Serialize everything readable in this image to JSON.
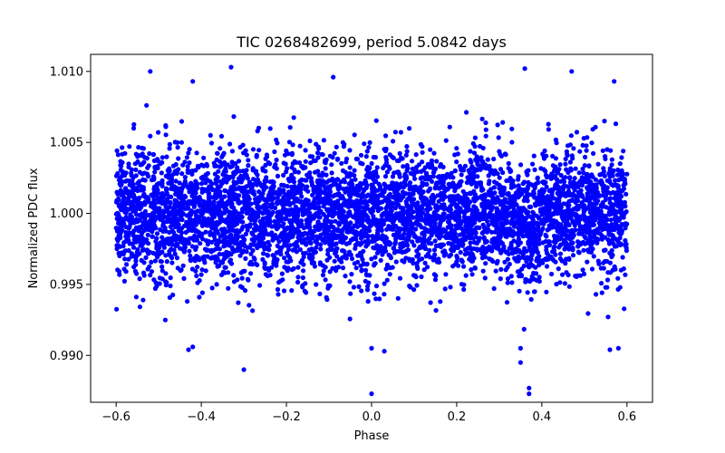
{
  "chart_data": {
    "type": "scatter",
    "title": "TIC 0268482699, period 5.0842 days",
    "xlabel": "Phase",
    "ylabel": "Normalized PDC flux",
    "xlim": [
      -0.66,
      0.66
    ],
    "ylim": [
      0.9867,
      1.0112
    ],
    "x_ticks": [
      -0.6,
      -0.4,
      -0.2,
      0.0,
      0.2,
      0.4,
      0.6
    ],
    "x_tick_labels": [
      "−0.6",
      "−0.4",
      "−0.2",
      "0.0",
      "0.2",
      "0.4",
      "0.6"
    ],
    "y_ticks": [
      0.99,
      0.995,
      1.0,
      1.005,
      1.01
    ],
    "y_tick_labels": [
      "0.990",
      "0.995",
      "1.000",
      "1.005",
      "1.010"
    ],
    "marker_color": "#0000ff",
    "grid": false,
    "phase_range": [
      -0.6,
      0.6
    ],
    "baseline_flux": 1.0,
    "typical_scatter": 0.0022,
    "dip": {
      "center_phase": 0.37,
      "approx_depth": 0.0015
    },
    "highlighted_points": [
      {
        "x": -0.33,
        "y": 1.0103
      },
      {
        "x": -0.52,
        "y": 1.01
      },
      {
        "x": 0.36,
        "y": 1.0102
      },
      {
        "x": 0.47,
        "y": 1.01
      },
      {
        "x": -0.09,
        "y": 1.0096
      },
      {
        "x": -0.42,
        "y": 1.0093
      },
      {
        "x": 0.57,
        "y": 1.0093
      },
      {
        "x": -0.3,
        "y": 0.989
      },
      {
        "x": 0.0,
        "y": 0.9873
      },
      {
        "x": 0.37,
        "y": 0.9873
      },
      {
        "x": 0.37,
        "y": 0.9877
      },
      {
        "x": -0.42,
        "y": 0.9906
      },
      {
        "x": -0.43,
        "y": 0.9904
      },
      {
        "x": 0.03,
        "y": 0.9903
      },
      {
        "x": 0.0,
        "y": 0.9905
      },
      {
        "x": 0.35,
        "y": 0.9895
      },
      {
        "x": 0.35,
        "y": 0.9905
      },
      {
        "x": 0.58,
        "y": 0.9905
      },
      {
        "x": 0.56,
        "y": 0.9904
      }
    ]
  }
}
